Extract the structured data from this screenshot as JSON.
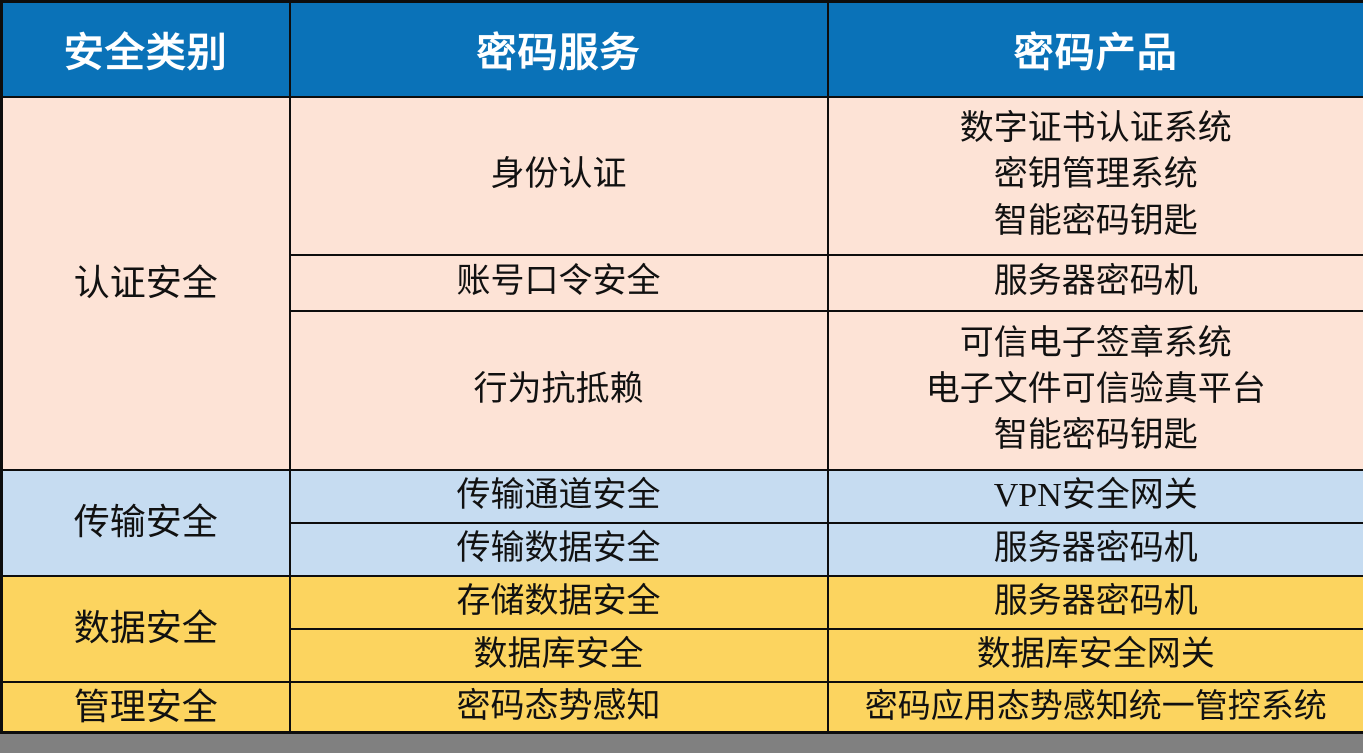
{
  "colors": {
    "header_bg": "#0a72b8",
    "auth_bg": "#fde3d6",
    "trans_bg": "#c6dcf1",
    "data_bg": "#fcd45f",
    "mgmt_bg": "#fcd45f",
    "bottom_bar": "#808080",
    "header_text": "#ffffff",
    "body_text": "#111111",
    "border": "#0d0d0d"
  },
  "table": {
    "header": {
      "columns": [
        "安全类别",
        "密码服务",
        "密码产品"
      ]
    },
    "sections": [
      {
        "category": "认证安全",
        "rows": [
          {
            "service": "身份认证",
            "products": [
              "数字证书认证系统",
              "密钥管理系统",
              "智能密码钥匙"
            ]
          },
          {
            "service": "账号口令安全",
            "products": [
              "服务器密码机"
            ]
          },
          {
            "service": "行为抗抵赖",
            "products": [
              "可信电子签章系统",
              "电子文件可信验真平台",
              "智能密码钥匙"
            ]
          }
        ]
      },
      {
        "category": "传输安全",
        "rows": [
          {
            "service": "传输通道安全",
            "products": [
              "VPN安全网关"
            ]
          },
          {
            "service": "传输数据安全",
            "products": [
              "服务器密码机"
            ]
          }
        ]
      },
      {
        "category": "数据安全",
        "rows": [
          {
            "service": "存储数据安全",
            "products": [
              "服务器密码机"
            ]
          },
          {
            "service": "数据库安全",
            "products": [
              "数据库安全网关"
            ]
          }
        ]
      },
      {
        "category": "管理安全",
        "rows": [
          {
            "service": "密码态势感知",
            "products": [
              "密码应用态势感知统一管控系统"
            ]
          }
        ]
      }
    ]
  }
}
